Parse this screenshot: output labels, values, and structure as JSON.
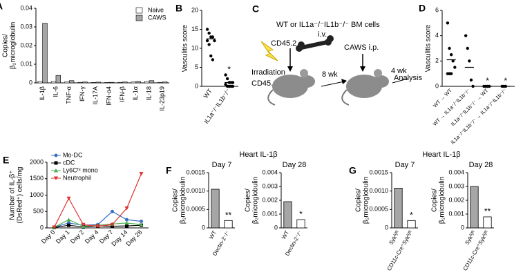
{
  "chart_data": [
    {
      "type": "bar",
      "panel": "A",
      "ylabel": [
        "Copies/",
        "β₂microglobulin"
      ],
      "categories": [
        "IL-1β",
        "IL-6",
        "TNF-α",
        "IFN-γ",
        "IL-17A",
        "IFN-α4",
        "IFN-β",
        "IL-1α",
        "IL-18",
        "IL-23p19"
      ],
      "series": [
        {
          "name": "Naive",
          "color": "#ffffff",
          "values": [
            0.001,
            0.0008,
            0.0005,
            0.0003,
            0.0002,
            0.0002,
            0.0003,
            0.0005,
            0.0008,
            0.0003
          ]
        },
        {
          "name": "CAWS",
          "color": "#a6a6a6",
          "values": [
            0.032,
            0.004,
            0.0012,
            0.0005,
            0.0004,
            0.0003,
            0.0005,
            0.0008,
            0.0012,
            0.0005
          ]
        }
      ],
      "ylim": [
        0,
        0.04
      ],
      "yticks": [
        0,
        0.01,
        0.02,
        0.03,
        0.04
      ],
      "legend": "upper right"
    },
    {
      "type": "dot",
      "panel": "B",
      "ylabel": [
        "Vasculitis score"
      ],
      "categories": [
        "WT",
        "IL1a⁻/⁻IL1b⁻/⁻"
      ],
      "values": [
        12.5,
        1
      ],
      "points": [
        [
          15,
          14,
          13,
          13,
          12,
          12,
          11,
          8,
          7
        ],
        [
          3,
          2,
          1,
          1,
          1,
          0.5,
          0,
          0,
          0,
          0
        ]
      ],
      "significance": [
        null,
        "*"
      ],
      "ylim": [
        0,
        20
      ],
      "yticks": [
        0,
        5,
        10,
        15,
        20
      ]
    },
    {
      "type": "dot",
      "panel": "D",
      "ylabel": [
        "Vasculitis score"
      ],
      "categories": [
        "WT → WT",
        "WT → IL1a⁻/⁻IL1b⁻/⁻",
        "IL1a⁻/⁻IL1b⁻/⁻ → WT",
        "IL1a⁻/⁻IL1b⁻/⁻ → IL1a⁻/⁻IL1b⁻/⁻"
      ],
      "values": [
        2.1,
        1.5,
        0,
        0
      ],
      "points": [
        [
          5,
          3,
          2.5,
          2,
          1.5,
          1,
          1,
          1
        ],
        [
          4,
          3,
          2,
          0.5,
          0
        ],
        [
          0,
          0,
          0,
          0
        ],
        [
          0,
          0,
          0
        ]
      ],
      "significance": [
        null,
        null,
        "*",
        "*"
      ],
      "ylim": [
        0,
        6
      ],
      "yticks": [
        0,
        2,
        4,
        6
      ]
    },
    {
      "type": "line",
      "panel": "E",
      "ylabel": [
        "Number of IL-β⁺",
        "(DsRed⁺) cells/mg"
      ],
      "categories": [
        "Day 0",
        "Day 1",
        "Day 2",
        "Day 4",
        "Day 7",
        "Day 14",
        "Day 28"
      ],
      "series": [
        {
          "name": "Mo-DC",
          "color": "#3a6fc4",
          "marker": "circle",
          "values": [
            20,
            150,
            80,
            100,
            500,
            250,
            200
          ]
        },
        {
          "name": "cDC",
          "color": "#000000",
          "marker": "square",
          "values": [
            10,
            80,
            30,
            60,
            50,
            60,
            80
          ]
        },
        {
          "name": "Ly6Cʰⁱ mono",
          "color": "#4caf50",
          "marker": "triangle-up",
          "values": [
            20,
            250,
            50,
            80,
            120,
            150,
            100
          ]
        },
        {
          "name": "Neutrophil",
          "color": "#e03030",
          "marker": "triangle-down",
          "values": [
            20,
            900,
            100,
            50,
            100,
            600,
            1650
          ]
        }
      ],
      "ylim": [
        0,
        2000
      ],
      "yticks": [
        0,
        500,
        1000,
        1500,
        2000
      ],
      "legend": "upper left"
    },
    {
      "type": "bar",
      "panel": "F",
      "title": "Heart IL-1β",
      "subtitle": "Day 7",
      "ylabel": [
        "Copies/",
        "β₂microglobulin"
      ],
      "categories": [
        "WT",
        "Dectin-2⁻/⁻"
      ],
      "values": [
        0.00105,
        0.0002
      ],
      "colors": [
        "#a6a6a6",
        "#ffffff"
      ],
      "significance": [
        null,
        "**"
      ],
      "ylim": [
        0,
        0.0015
      ],
      "yticks": [
        0,
        {
          "value": 0.0005,
          "label": "0.0005"
        },
        {
          "value": 0.001,
          "label": "0.0010"
        },
        0.0015
      ]
    },
    {
      "type": "bar",
      "subtitle": "Day 28",
      "ylabel": [
        "Copies/",
        "β₂microglobulin"
      ],
      "categories": [
        "WT",
        "Dectin-2⁻/⁻"
      ],
      "values": [
        0.0019,
        0.0006
      ],
      "colors": [
        "#a6a6a6",
        "#ffffff"
      ],
      "significance": [
        null,
        "*"
      ],
      "ylim": [
        0,
        0.004
      ],
      "yticks": [
        0,
        0.001,
        0.002,
        0.003,
        0.004
      ]
    },
    {
      "type": "bar",
      "panel": "G",
      "title": "Heart IL-1β",
      "subtitle": "Day 7",
      "ylabel": [
        "Copies/",
        "β₂microglobulin"
      ],
      "categories": [
        "Sykᶠˡ/ᶠˡ",
        "CD11c-Cre⁺Sykᶠˡ/ᶠˡ"
      ],
      "values": [
        0.00108,
        0.0002
      ],
      "colors": [
        "#a6a6a6",
        "#ffffff"
      ],
      "significance": [
        null,
        "*"
      ],
      "ylim": [
        0,
        0.0015
      ],
      "yticks": [
        0,
        {
          "value": 0.0005,
          "label": "0.0005"
        },
        {
          "value": 0.001,
          "label": "0.0010"
        },
        0.0015
      ]
    },
    {
      "type": "bar",
      "subtitle": "Day 28",
      "ylabel": [
        "Copies/",
        "β₂microglobulin"
      ],
      "categories": [
        "Sykᶠˡ/ᶠˡ",
        "CD11c-Cre⁺Sykᶠˡ/ᶠˡ"
      ],
      "values": [
        0.003,
        0.0008
      ],
      "colors": [
        "#a6a6a6",
        "#ffffff"
      ],
      "significance": [
        null,
        "**"
      ],
      "ylim": [
        0,
        0.004
      ],
      "yticks": [
        0,
        0.001,
        0.002,
        0.003,
        0.004
      ]
    }
  ],
  "diagram": {
    "panel": "C",
    "donor": "WT or IL1a⁻/⁻IL1b⁻/⁻ BM cells",
    "route": "i.v.",
    "donor_marker": "CD45.2",
    "irradiation": "Irradiation",
    "recipient_marker": "CD45.1",
    "interval_1": "8 wk",
    "challenge": "CAWS i.p.",
    "interval_2": "4 wk",
    "end": "Analysis"
  }
}
